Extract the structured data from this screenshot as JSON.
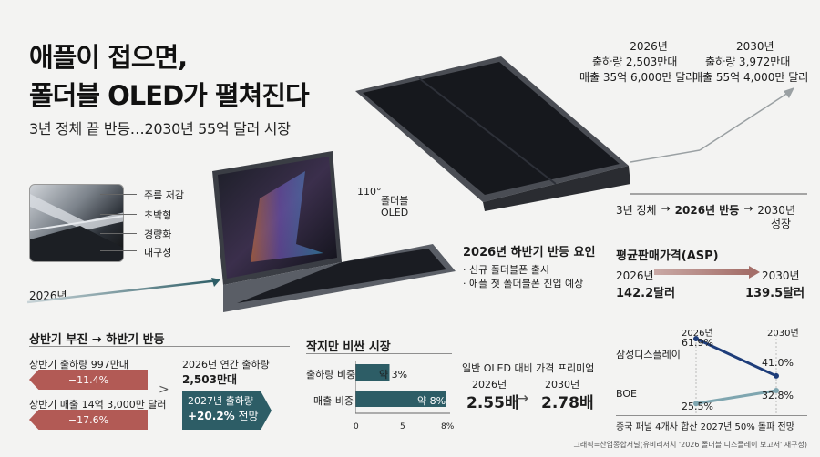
{
  "header": {
    "title_line1": "애플이 접으면,",
    "title_line2": "폴더블 OLED가 펼쳐진다",
    "subtitle": "3년 정체 끝 반등…2030년 55억 달러 시장"
  },
  "features": [
    "주름 저감",
    "초박형",
    "경량화",
    "내구성"
  ],
  "fold_angle": "110°",
  "fold_label_1": "폴더블",
  "fold_label_2": "OLED",
  "year_2026": "2026년",
  "top_chart": {
    "left_year": "2026년",
    "left_line1": "출하량 2,503만대",
    "left_line2": "매출 35억 6,000만 달러",
    "right_year": "2030년",
    "right_line1": "출하량 3,972만대",
    "right_line2": "매출 55억 4,000만 달러",
    "axis_stage1": "3년 정체",
    "axis_arrow1": "→",
    "axis_stage2": "2026년 반등",
    "axis_arrow2": "→",
    "axis_stage3_a": "2030년",
    "axis_stage3_b": "성장"
  },
  "rebound": {
    "title": "2026년 하반기 반등 요인",
    "items": [
      "· 신규 폴더블폰 출시",
      "· 애플 첫 폴더블폰 진입 예상"
    ]
  },
  "asp": {
    "title": "평균판매가격(ASP)",
    "left_year": "2026년",
    "left_value": "142.2달러",
    "right_year": "2030년",
    "right_value": "139.5달러"
  },
  "half": {
    "title": "상반기 부진 → 하반기 반등",
    "ship_label": "상반기 출하량 997만대",
    "ship_change": "−11.4%",
    "rev_label": "상반기 매출 14억 3,000만 달러",
    "rev_change": "−17.6%",
    "annual_label": "2026년 연간 출하량",
    "annual_value": "2,503만대",
    "arrow": ">",
    "pill_line1": "2027년 출하량",
    "pill_line2_bold": "+20.2%",
    "pill_line2_rest": " 전망"
  },
  "niche": {
    "title": "작지만 비싼 시장",
    "row1_label": "출하량 비중",
    "row1_value": "약 3%",
    "row2_label": "매출 비중",
    "row2_value": "약 8%",
    "ticks": [
      "0",
      "5",
      "8%"
    ],
    "row1_pct": 3,
    "row2_pct": 8,
    "axis_max": 8
  },
  "premium": {
    "title": "일반 OLED 대비 가격 프리미엄",
    "left_year": "2026년",
    "left_value": "2.55배",
    "right_year": "2030년",
    "right_value": "2.78배",
    "arrow": "→"
  },
  "share": {
    "year_left": "2026년",
    "year_right": "2030년",
    "samsung_label": "삼성디스플레이",
    "samsung_2026": "61.9%",
    "samsung_2030": "41.0%",
    "boe_label": "BOE",
    "boe_2026": "25.5%",
    "boe_2030": "32.8%",
    "note": "중국 패널 4개사 합산 2027년 50% 돌파 전망",
    "colors": {
      "samsung": "#1e3d7a",
      "boe": "#7fa6b0"
    }
  },
  "credit": "그래픽=산업종합저널(유비리서치 '2026 폴더블 디스플레이 보고서' 재구성)"
}
